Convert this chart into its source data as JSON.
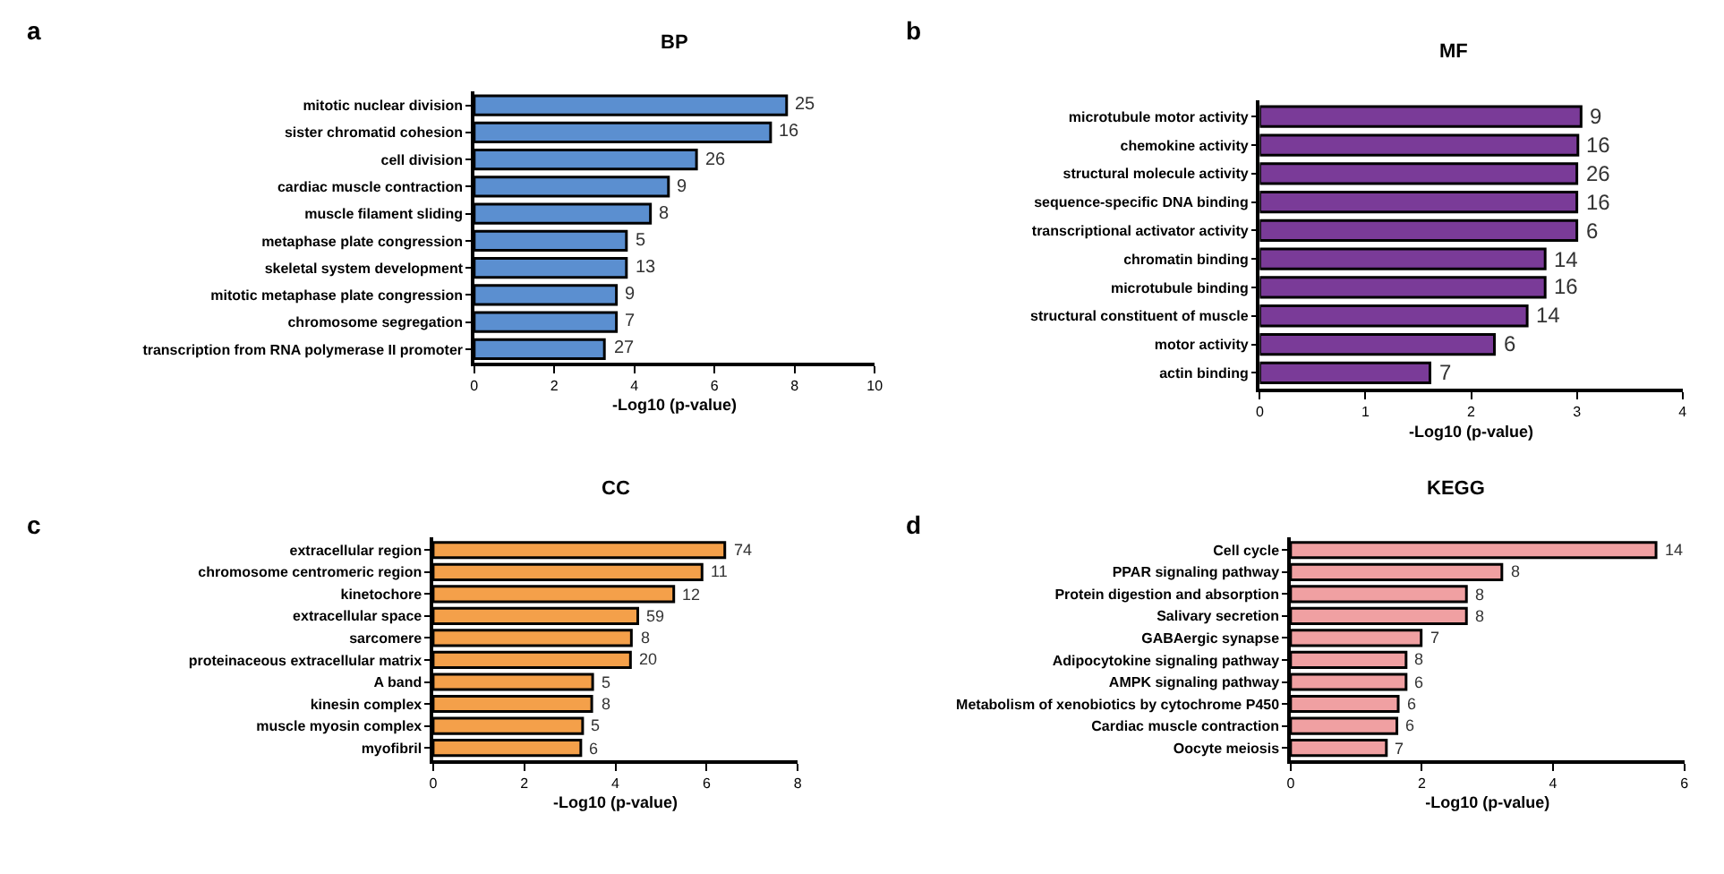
{
  "chart_data": [
    {
      "type": "bar",
      "orientation": "horizontal",
      "title": "BP",
      "xlabel": "-Log10 (p-value)",
      "categories": [
        "mitotic nuclear division",
        "sister chromatid cohesion",
        "cell division",
        "cardiac muscle contraction",
        "muscle filament sliding",
        "metaphase plate congression",
        "skeletal system development",
        "mitotic metaphase plate congression",
        "chromosome segregation",
        "transcription from RNA polymerase II promoter"
      ],
      "values": [
        7.8,
        7.4,
        5.55,
        4.85,
        4.4,
        3.8,
        3.8,
        3.55,
        3.55,
        3.25
      ],
      "color": "#5b8fd0",
      "annotations": [
        "a",
        {
          "text": "25",
          "x": 7.8,
          "y": "mitotic nuclear division"
        },
        {
          "text": "16",
          "x": 7.4,
          "y": "sister chromatid cohesion"
        },
        {
          "text": "26",
          "x": 5.55,
          "y": "cell division"
        },
        {
          "text": "9",
          "x": 4.85,
          "y": "cardiac muscle contraction"
        },
        {
          "text": "8",
          "x": 4.4,
          "y": "muscle filament sliding"
        },
        {
          "text": "5",
          "x": 3.8,
          "y": "metaphase plate congression"
        },
        {
          "text": "13",
          "x": 3.8,
          "y": "skeletal system development"
        },
        {
          "text": "9",
          "x": 3.55,
          "y": "mitotic metaphase plate congression"
        },
        {
          "text": "7",
          "x": 3.55,
          "y": "chromosome segregation"
        },
        {
          "text": "27",
          "x": 3.25,
          "y": "transcription from RNA polymerase II promoter"
        }
      ],
      "xlim": [
        0,
        10
      ],
      "xticks": [
        0,
        2,
        4,
        6,
        8,
        10
      ]
    },
    {
      "type": "bar",
      "orientation": "horizontal",
      "title": "MF",
      "xlabel": "-Log10 (p-value)",
      "categories": [
        "microtubule motor activity",
        "chemokine activity",
        "structural molecule activity",
        "sequence-specific DNA binding",
        "transcriptional activator activity",
        "chromatin binding",
        "microtubule binding",
        "structural constituent of muscle",
        "motor activity",
        "actin binding"
      ],
      "values": [
        3.04,
        3.01,
        3.0,
        3.0,
        3.0,
        2.7,
        2.7,
        2.53,
        2.22,
        1.61
      ],
      "color": "#7a3b98",
      "annotations": [
        "b",
        {
          "text": "9",
          "x": 3.04,
          "y": "microtubule motor activity"
        },
        {
          "text": "16",
          "x": 3.01,
          "y": "chemokine activity"
        },
        {
          "text": "26",
          "x": 3.0,
          "y": "structural molecule activity"
        },
        {
          "text": "16",
          "x": 3.0,
          "y": "sequence-specific DNA binding"
        },
        {
          "text": "6",
          "x": 3.0,
          "y": "transcriptional activator activity"
        },
        {
          "text": "14",
          "x": 2.7,
          "y": "chromatin binding"
        },
        {
          "text": "16",
          "x": 2.7,
          "y": "microtubule binding"
        },
        {
          "text": "14",
          "x": 2.53,
          "y": "structural constituent of muscle"
        },
        {
          "text": "6",
          "x": 2.22,
          "y": "motor activity"
        },
        {
          "text": "7",
          "x": 1.61,
          "y": "actin binding"
        }
      ],
      "xlim": [
        0,
        4
      ],
      "xticks": [
        0,
        1,
        2,
        3,
        4
      ]
    },
    {
      "type": "bar",
      "orientation": "horizontal",
      "title": "CC",
      "xlabel": "-Log10 (p-value)",
      "categories": [
        "extracellular region",
        "chromosome centromeric region",
        "kinetochore",
        "extracellular space",
        "sarcomere",
        "proteinaceous extracellular matrix",
        "A band",
        "kinesin complex",
        "muscle myosin complex",
        "myofibril"
      ],
      "values": [
        6.4,
        5.9,
        5.28,
        4.49,
        4.35,
        4.33,
        3.5,
        3.48,
        3.28,
        3.24
      ],
      "color": "#f4a04a",
      "annotations": [
        "c",
        {
          "text": "74",
          "x": 6.4,
          "y": "extracellular region"
        },
        {
          "text": "11",
          "x": 5.9,
          "y": "chromosome centromeric region"
        },
        {
          "text": "12",
          "x": 5.28,
          "y": "kinetochore"
        },
        {
          "text": "59",
          "x": 4.49,
          "y": "extracellular space"
        },
        {
          "text": "8",
          "x": 4.35,
          "y": "sarcomere"
        },
        {
          "text": "20",
          "x": 4.33,
          "y": "proteinaceous extracellular matrix"
        },
        {
          "text": "5",
          "x": 3.5,
          "y": "A band"
        },
        {
          "text": "8",
          "x": 3.48,
          "y": "kinesin complex"
        },
        {
          "text": "5",
          "x": 3.28,
          "y": "muscle myosin complex"
        },
        {
          "text": "6",
          "x": 3.24,
          "y": "myofibril"
        }
      ],
      "xlim": [
        0,
        8
      ],
      "xticks": [
        0,
        2,
        4,
        6,
        8
      ]
    },
    {
      "type": "bar",
      "orientation": "horizontal",
      "title": "KEGG",
      "xlabel": "-Log10 (p-value)",
      "categories": [
        "Cell cycle",
        "PPAR signaling pathway",
        "Protein digestion and absorption",
        "Salivary secretion",
        "GABAergic synapse",
        "Adipocytokine signaling pathway",
        "AMPK signaling pathway",
        "Metabolism of xenobiotics by cytochrome P450",
        "Cardiac muscle contraction",
        "Oocyte meiosis"
      ],
      "values": [
        5.57,
        3.22,
        2.68,
        2.68,
        1.99,
        1.76,
        1.76,
        1.64,
        1.62,
        1.46
      ],
      "color": "#f0a0a2",
      "annotations": [
        "d",
        {
          "text": "14",
          "x": 5.57,
          "y": "Cell cycle"
        },
        {
          "text": "8",
          "x": 3.22,
          "y": "PPAR signaling pathway"
        },
        {
          "text": "8",
          "x": 2.68,
          "y": "Protein digestion and absorption"
        },
        {
          "text": "8",
          "x": 2.68,
          "y": "Salivary secretion"
        },
        {
          "text": "7",
          "x": 1.99,
          "y": "GABAergic synapse"
        },
        {
          "text": "8",
          "x": 1.76,
          "y": "Adipocytokine signaling pathway"
        },
        {
          "text": "6",
          "x": 1.76,
          "y": "AMPK signaling pathway"
        },
        {
          "text": "6",
          "x": 1.64,
          "y": "Metabolism of xenobiotics by cytochrome P450"
        },
        {
          "text": "6",
          "x": 1.62,
          "y": "Cardiac muscle contraction"
        },
        {
          "text": "7",
          "x": 1.46,
          "y": "Oocyte meiosis"
        }
      ],
      "xlim": [
        0,
        6
      ],
      "xticks": [
        0,
        2,
        4,
        6
      ]
    }
  ]
}
